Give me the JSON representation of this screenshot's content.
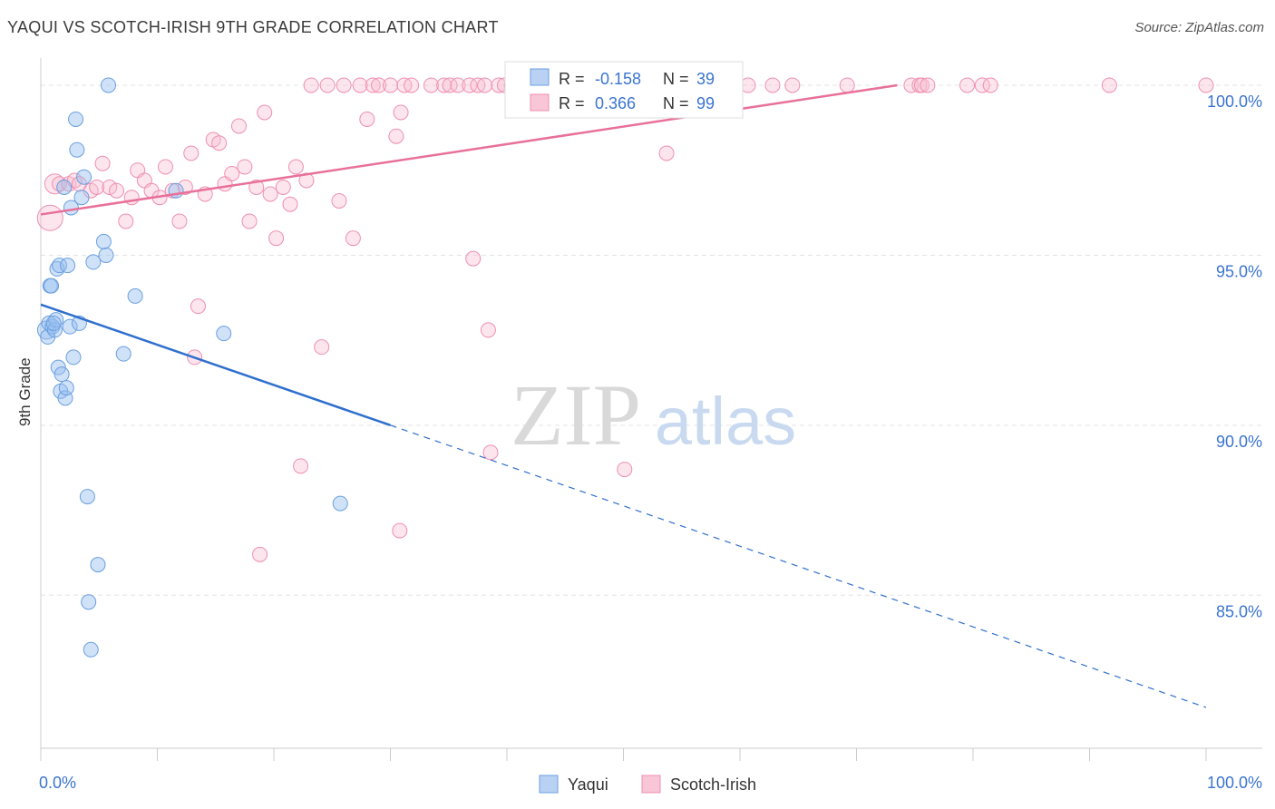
{
  "title": "YAQUI VS SCOTCH-IRISH 9TH GRADE CORRELATION CHART",
  "source": "Source: ZipAtlas.com",
  "watermark": {
    "zip": "ZIP",
    "atlas": "atlas"
  },
  "chart_data": {
    "type": "scatter",
    "title": "YAQUI VS SCOTCH-IRISH 9TH GRADE CORRELATION CHART",
    "xlabel": "",
    "ylabel": "9th Grade",
    "xlim": [
      0,
      100
    ],
    "ylim": [
      80.5,
      100.8
    ],
    "x_tick_labels": [
      "0.0%",
      "100.0%"
    ],
    "y_ticks": [
      85,
      90,
      95,
      100
    ],
    "y_tick_labels": [
      "85.0%",
      "90.0%",
      "95.0%",
      "100.0%"
    ],
    "colors": {
      "Yaqui": "#6a9fe0",
      "Scotch-Irish": "#ee8fb0",
      "yaqui_line": "#2f6fce",
      "scotch_line": "#e8709a",
      "value_text": "#3a74d0"
    },
    "legend_stats": [
      {
        "r_label": "R =",
        "r": "-0.158",
        "n_label": "N =",
        "n": "39"
      },
      {
        "r_label": "R =",
        "r": "0.366",
        "n_label": "N =",
        "n": "99"
      }
    ],
    "series": [
      {
        "name": "Yaqui",
        "points": [
          [
            0.5,
            92.8
          ],
          [
            0.6,
            92.6
          ],
          [
            0.7,
            93.0
          ],
          [
            0.8,
            94.1
          ],
          [
            0.9,
            94.1
          ],
          [
            1.0,
            92.9
          ],
          [
            1.2,
            92.8
          ],
          [
            1.3,
            93.1
          ],
          [
            1.4,
            94.6
          ],
          [
            1.5,
            91.7
          ],
          [
            1.6,
            94.7
          ],
          [
            1.7,
            91.0
          ],
          [
            1.8,
            91.5
          ],
          [
            2.0,
            97.0
          ],
          [
            2.1,
            90.8
          ],
          [
            2.2,
            91.1
          ],
          [
            2.3,
            94.7
          ],
          [
            2.5,
            92.9
          ],
          [
            2.6,
            96.4
          ],
          [
            2.8,
            92.0
          ],
          [
            3.0,
            99.0
          ],
          [
            3.1,
            98.1
          ],
          [
            3.3,
            93.0
          ],
          [
            3.5,
            96.7
          ],
          [
            3.7,
            97.3
          ],
          [
            4.0,
            87.9
          ],
          [
            4.1,
            84.8
          ],
          [
            4.3,
            83.4
          ],
          [
            4.5,
            94.8
          ],
          [
            4.9,
            85.9
          ],
          [
            5.4,
            95.4
          ],
          [
            5.6,
            95.0
          ],
          [
            5.8,
            100.0
          ],
          [
            7.1,
            92.1
          ],
          [
            8.1,
            93.8
          ],
          [
            11.6,
            96.9
          ],
          [
            15.7,
            92.7
          ],
          [
            25.7,
            87.7
          ],
          [
            1.1,
            93.0
          ]
        ]
      },
      {
        "name": "Scotch-Irish",
        "points": [
          [
            0.8,
            96.1
          ],
          [
            1.2,
            97.1
          ],
          [
            1.6,
            97.1
          ],
          [
            2.4,
            97.1
          ],
          [
            2.9,
            97.2
          ],
          [
            3.3,
            97.1
          ],
          [
            4.3,
            96.9
          ],
          [
            4.8,
            97.0
          ],
          [
            5.3,
            97.7
          ],
          [
            5.9,
            97.0
          ],
          [
            6.5,
            96.9
          ],
          [
            7.3,
            96.0
          ],
          [
            7.8,
            96.7
          ],
          [
            8.3,
            97.5
          ],
          [
            8.9,
            97.2
          ],
          [
            9.5,
            96.9
          ],
          [
            10.2,
            96.7
          ],
          [
            10.7,
            97.6
          ],
          [
            11.3,
            96.9
          ],
          [
            11.9,
            96.0
          ],
          [
            12.4,
            97.0
          ],
          [
            12.9,
            98.0
          ],
          [
            13.5,
            93.5
          ],
          [
            13.2,
            92.0
          ],
          [
            14.1,
            96.8
          ],
          [
            14.8,
            98.4
          ],
          [
            15.3,
            98.3
          ],
          [
            15.8,
            97.1
          ],
          [
            16.4,
            97.4
          ],
          [
            17.0,
            98.8
          ],
          [
            17.5,
            97.6
          ],
          [
            17.9,
            96.0
          ],
          [
            18.5,
            97.0
          ],
          [
            19.2,
            99.2
          ],
          [
            19.7,
            96.8
          ],
          [
            20.2,
            95.5
          ],
          [
            20.8,
            97.0
          ],
          [
            21.4,
            96.5
          ],
          [
            21.9,
            97.6
          ],
          [
            22.8,
            97.2
          ],
          [
            23.2,
            100.0
          ],
          [
            24.1,
            92.3
          ],
          [
            24.6,
            100.0
          ],
          [
            25.6,
            96.6
          ],
          [
            26.0,
            100.0
          ],
          [
            26.8,
            95.5
          ],
          [
            27.4,
            100.0
          ],
          [
            28.0,
            99.0
          ],
          [
            28.5,
            100.0
          ],
          [
            29.0,
            100.0
          ],
          [
            30.0,
            100.0
          ],
          [
            30.5,
            98.5
          ],
          [
            30.9,
            99.2
          ],
          [
            31.2,
            100.0
          ],
          [
            31.8,
            100.0
          ],
          [
            22.3,
            88.8
          ],
          [
            18.8,
            86.2
          ],
          [
            30.8,
            86.9
          ],
          [
            33.5,
            100.0
          ],
          [
            34.6,
            100.0
          ],
          [
            35.1,
            100.0
          ],
          [
            35.8,
            100.0
          ],
          [
            36.8,
            100.0
          ],
          [
            37.1,
            94.9
          ],
          [
            37.5,
            100.0
          ],
          [
            38.1,
            100.0
          ],
          [
            38.4,
            92.8
          ],
          [
            38.6,
            89.2
          ],
          [
            39.3,
            100.0
          ],
          [
            39.8,
            100.0
          ],
          [
            40.4,
            100.0
          ],
          [
            41.1,
            100.0
          ],
          [
            41.7,
            100.0
          ],
          [
            42.5,
            100.0
          ],
          [
            43.1,
            100.0
          ],
          [
            44.1,
            100.0
          ],
          [
            45.0,
            100.0
          ],
          [
            46.1,
            100.0
          ],
          [
            47.2,
            100.0
          ],
          [
            48.0,
            100.0
          ],
          [
            50.1,
            88.7
          ],
          [
            51.7,
            100.0
          ],
          [
            53.3,
            100.0
          ],
          [
            53.7,
            98.0
          ],
          [
            56.2,
            100.0
          ],
          [
            60.7,
            100.0
          ],
          [
            62.8,
            100.0
          ],
          [
            64.5,
            100.0
          ],
          [
            69.2,
            100.0
          ],
          [
            74.7,
            100.0
          ],
          [
            75.4,
            100.0
          ],
          [
            75.6,
            100.0
          ],
          [
            76.1,
            100.0
          ],
          [
            79.5,
            100.0
          ],
          [
            80.8,
            100.0
          ],
          [
            81.5,
            100.0
          ],
          [
            91.7,
            100.0
          ],
          [
            100.0,
            100.0
          ],
          [
            58.7,
            100.0
          ]
        ]
      }
    ],
    "trend_lines": [
      {
        "series": "Yaqui",
        "solid": [
          [
            0,
            93.55
          ],
          [
            30,
            90.0
          ]
        ],
        "dashed": [
          [
            30,
            90.0
          ],
          [
            100,
            81.7
          ]
        ]
      },
      {
        "series": "Scotch-Irish",
        "solid": [
          [
            0,
            96.2
          ],
          [
            73.5,
            100.0
          ]
        ]
      }
    ]
  }
}
